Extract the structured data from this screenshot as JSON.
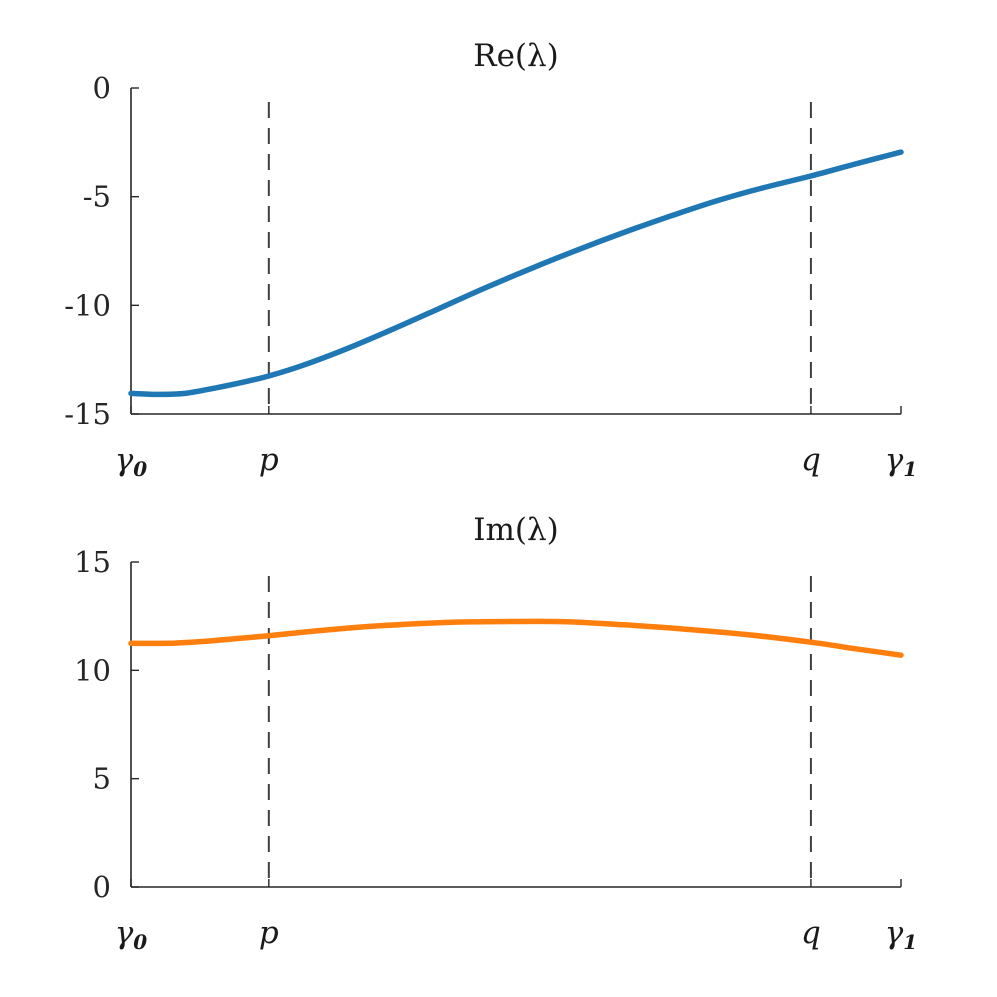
{
  "chart_data": [
    {
      "type": "line",
      "title": "Re(λ)",
      "ylim": [
        -15,
        0
      ],
      "yticks": [
        "0",
        "-5",
        "-10",
        "-15"
      ],
      "ytick_values": [
        0,
        -5,
        -10,
        -15
      ],
      "xlim": [
        0,
        1
      ],
      "xticks": [
        {
          "value": 0.0,
          "label": "γ",
          "sub": "0"
        },
        {
          "value": 0.179,
          "label": "p",
          "sub": ""
        },
        {
          "value": 0.883,
          "label": "q",
          "sub": ""
        },
        {
          "value": 1.0,
          "label": "γ",
          "sub": "1"
        }
      ],
      "vlines": [
        0.179,
        0.883
      ],
      "series": [
        {
          "color": "#1f77b4",
          "x": [
            0.0,
            0.035,
            0.07,
            0.11,
            0.15,
            0.179,
            0.22,
            0.28,
            0.34,
            0.4,
            0.46,
            0.52,
            0.58,
            0.64,
            0.7,
            0.76,
            0.82,
            0.883,
            0.94,
            1.0
          ],
          "y": [
            -14.05,
            -14.1,
            -14.05,
            -13.8,
            -13.5,
            -13.25,
            -12.8,
            -12.0,
            -11.1,
            -10.15,
            -9.2,
            -8.3,
            -7.45,
            -6.65,
            -5.9,
            -5.2,
            -4.6,
            -4.05,
            -3.5,
            -2.95
          ]
        }
      ]
    },
    {
      "type": "line",
      "title": "Im(λ)",
      "ylim": [
        0,
        15
      ],
      "yticks": [
        "15",
        "10",
        "5",
        "0"
      ],
      "ytick_values": [
        15,
        10,
        5,
        0
      ],
      "xlim": [
        0,
        1
      ],
      "xticks": [
        {
          "value": 0.0,
          "label": "γ",
          "sub": "0"
        },
        {
          "value": 0.179,
          "label": "p",
          "sub": ""
        },
        {
          "value": 0.883,
          "label": "q",
          "sub": ""
        },
        {
          "value": 1.0,
          "label": "γ",
          "sub": "1"
        }
      ],
      "vlines": [
        0.179,
        0.883
      ],
      "series": [
        {
          "color": "#ff7f0e",
          "x": [
            0.0,
            0.05,
            0.1,
            0.179,
            0.25,
            0.32,
            0.4,
            0.48,
            0.56,
            0.64,
            0.72,
            0.8,
            0.883,
            0.94,
            1.0
          ],
          "y": [
            11.25,
            11.25,
            11.35,
            11.6,
            11.85,
            12.05,
            12.2,
            12.25,
            12.25,
            12.1,
            11.9,
            11.65,
            11.3,
            11.0,
            10.7
          ]
        }
      ]
    }
  ]
}
